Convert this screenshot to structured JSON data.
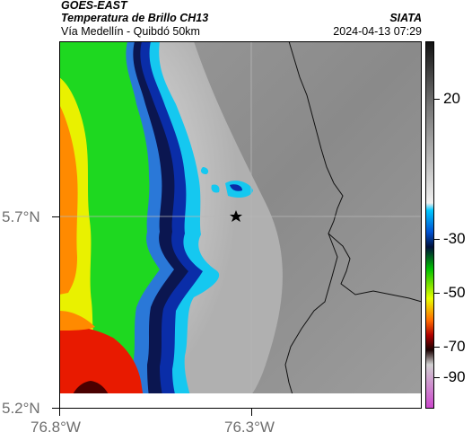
{
  "header": {
    "satellite": "GOES-EAST",
    "product": "Temperatura de Brillo CH13",
    "region": "Vía Medellín - Quibdó 50km",
    "agency": "SIATA",
    "datetime": "2024-04-13 07:29"
  },
  "axes": {
    "y_labels": [
      "5.7°N",
      "5.2°N"
    ],
    "x_labels": [
      "76.8°W",
      "76.3°W"
    ]
  },
  "colorbar": {
    "labels": [
      "20",
      "-30",
      "-50",
      "-70",
      "-90"
    ],
    "stops": [
      "#111111",
      "#777777",
      "#f0f0f0",
      "#00c8ff",
      "#0050d0",
      "#00103a",
      "#00c000",
      "#e8ff00",
      "#ff6a00",
      "#b00000",
      "#1a0000",
      "#d0d0d0",
      "#cc44cc"
    ]
  },
  "map": {
    "marker": "star-marker",
    "colors": {
      "background": "#8a8a8a",
      "cloud_light": "#c8c8c8",
      "cyan": "#15c8f0",
      "blue": "#0a2da8",
      "navy": "#0b1650",
      "green": "#1ed820",
      "yellow": "#e9f100",
      "orange": "#ff8a00",
      "red": "#e81a00",
      "darkred": "#4a0000"
    }
  }
}
